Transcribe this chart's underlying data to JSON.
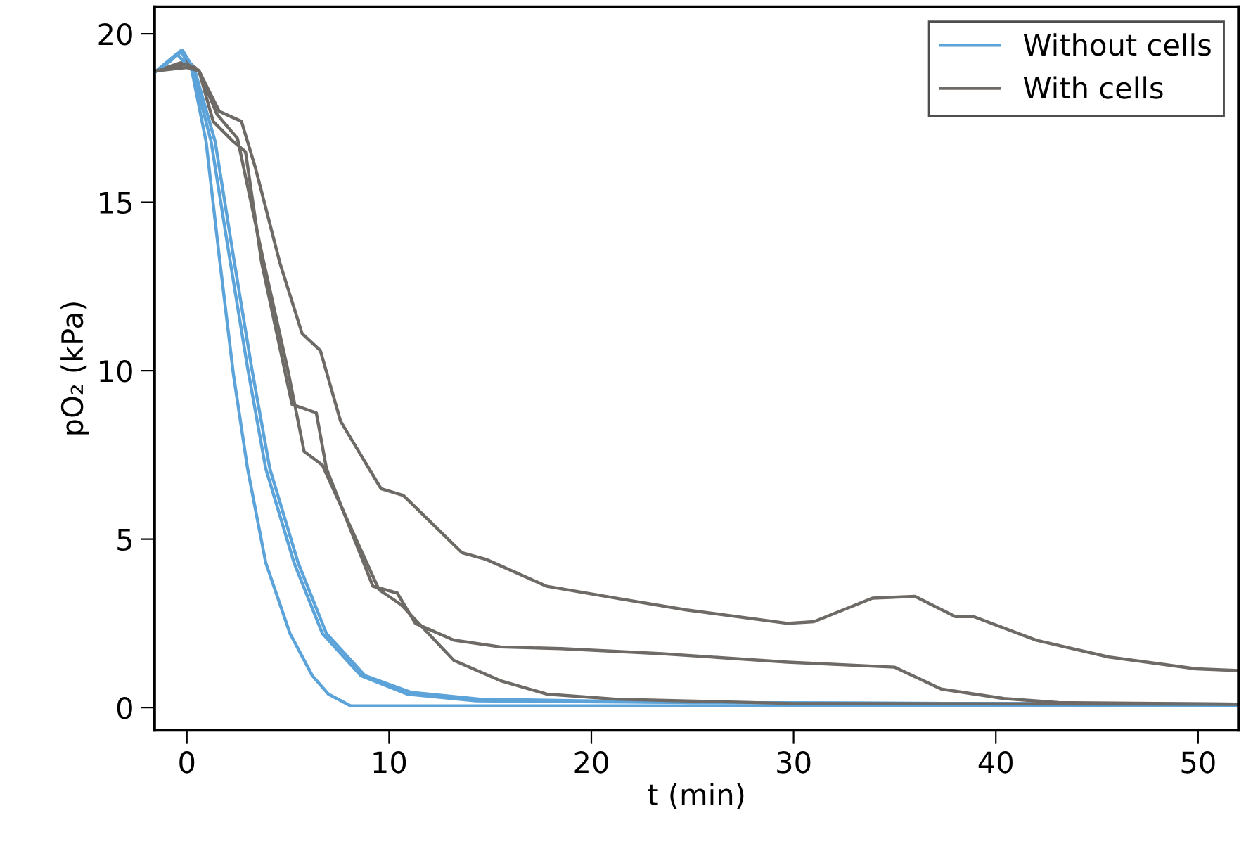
{
  "chart_data": {
    "type": "line",
    "xlabel": "t (min)",
    "ylabel": "pO₂ (kPa)",
    "xlim": [
      -1.6,
      52
    ],
    "ylim": [
      -0.67,
      20.8
    ],
    "xticks": [
      0,
      10,
      20,
      30,
      40,
      50
    ],
    "yticks": [
      0,
      5,
      10,
      15,
      20
    ],
    "grid": false,
    "legend": "top right",
    "marker": "none",
    "line_style": "solid",
    "series": [
      {
        "name": "Without cells",
        "color": "#5ba3d9",
        "x": [
          -1.5,
          -0.8,
          -0.3,
          0.25,
          0.95,
          1.6,
          2.3,
          3.0,
          3.9,
          5.1,
          6.2,
          7.0,
          8.1,
          15,
          30,
          52
        ],
        "values": [
          18.9,
          19.2,
          19.5,
          18.9,
          16.8,
          13.4,
          9.9,
          7.1,
          4.3,
          2.2,
          0.95,
          0.4,
          0.05,
          0.05,
          0.05,
          0.05
        ]
      },
      {
        "name": "With cells",
        "color": "#6e6a66",
        "x": [
          -1.5,
          0,
          0.6,
          1.6,
          2.7,
          3.4,
          4.6,
          5.7,
          6.6,
          7.6,
          9.6,
          10.7,
          13.6,
          14.8,
          17.8,
          21.7,
          24.7,
          29.7,
          31,
          33.9,
          36,
          38,
          38.9,
          42,
          45.6,
          49.9,
          52
        ],
        "values": [
          18.9,
          19.2,
          18.9,
          17.7,
          17.4,
          16.0,
          13.2,
          11.1,
          10.6,
          8.5,
          6.5,
          6.3,
          4.6,
          4.4,
          3.6,
          3.2,
          2.9,
          2.5,
          2.55,
          3.25,
          3.3,
          2.7,
          2.7,
          2.0,
          1.5,
          1.15,
          1.1
        ]
      },
      {
        "color": "#5ba3d9",
        "x": [
          -1.5,
          -0.5,
          0.3,
          1.2,
          2.1,
          3.0,
          3.9,
          5.3,
          6.7,
          8.6,
          10.9,
          14.3,
          25,
          40,
          52
        ],
        "values": [
          18.9,
          19.4,
          18.9,
          16.8,
          13.4,
          10.1,
          7.1,
          4.3,
          2.2,
          0.95,
          0.4,
          0.2,
          0.15,
          0.12,
          0.1
        ]
      },
      {
        "color": "#5ba3d9",
        "x": [
          -1.5,
          -0.2,
          0.4,
          1.4,
          2.3,
          3.2,
          4.1,
          5.5,
          6.9,
          8.8,
          11.1,
          14.5,
          25,
          40,
          52
        ],
        "values": [
          18.9,
          19.5,
          18.9,
          16.8,
          13.4,
          10.1,
          7.1,
          4.3,
          2.2,
          0.95,
          0.45,
          0.25,
          0.15,
          0.12,
          0.1
        ]
      },
      {
        "color": "#6e6a66",
        "x": [
          -1.5,
          0,
          0.6,
          1.3,
          2.3,
          2.9,
          3.7,
          5.2,
          6.4,
          6.9,
          9.2,
          10.4,
          11.3,
          13.2,
          15.5,
          18.5,
          23.5,
          29.7,
          35,
          37.3,
          40.4,
          43.1,
          52
        ],
        "values": [
          18.9,
          19.1,
          18.9,
          17.4,
          16.8,
          16.5,
          13.2,
          9.0,
          8.75,
          7.1,
          3.6,
          3.4,
          2.5,
          2.0,
          1.8,
          1.75,
          1.6,
          1.35,
          1.2,
          0.55,
          0.27,
          0.15,
          0.1
        ]
      },
      {
        "color": "#6e6a66",
        "x": [
          -1.5,
          0,
          0.6,
          1.5,
          2.5,
          3.7,
          5.0,
          5.8,
          6.7,
          9.5,
          10.6,
          13.2,
          15.5,
          17.8,
          21.2,
          30,
          52
        ],
        "values": [
          18.9,
          19.0,
          18.9,
          17.6,
          16.9,
          13.5,
          10.0,
          7.6,
          7.2,
          3.5,
          3.05,
          1.4,
          0.8,
          0.4,
          0.25,
          0.12,
          0.1
        ]
      }
    ]
  }
}
